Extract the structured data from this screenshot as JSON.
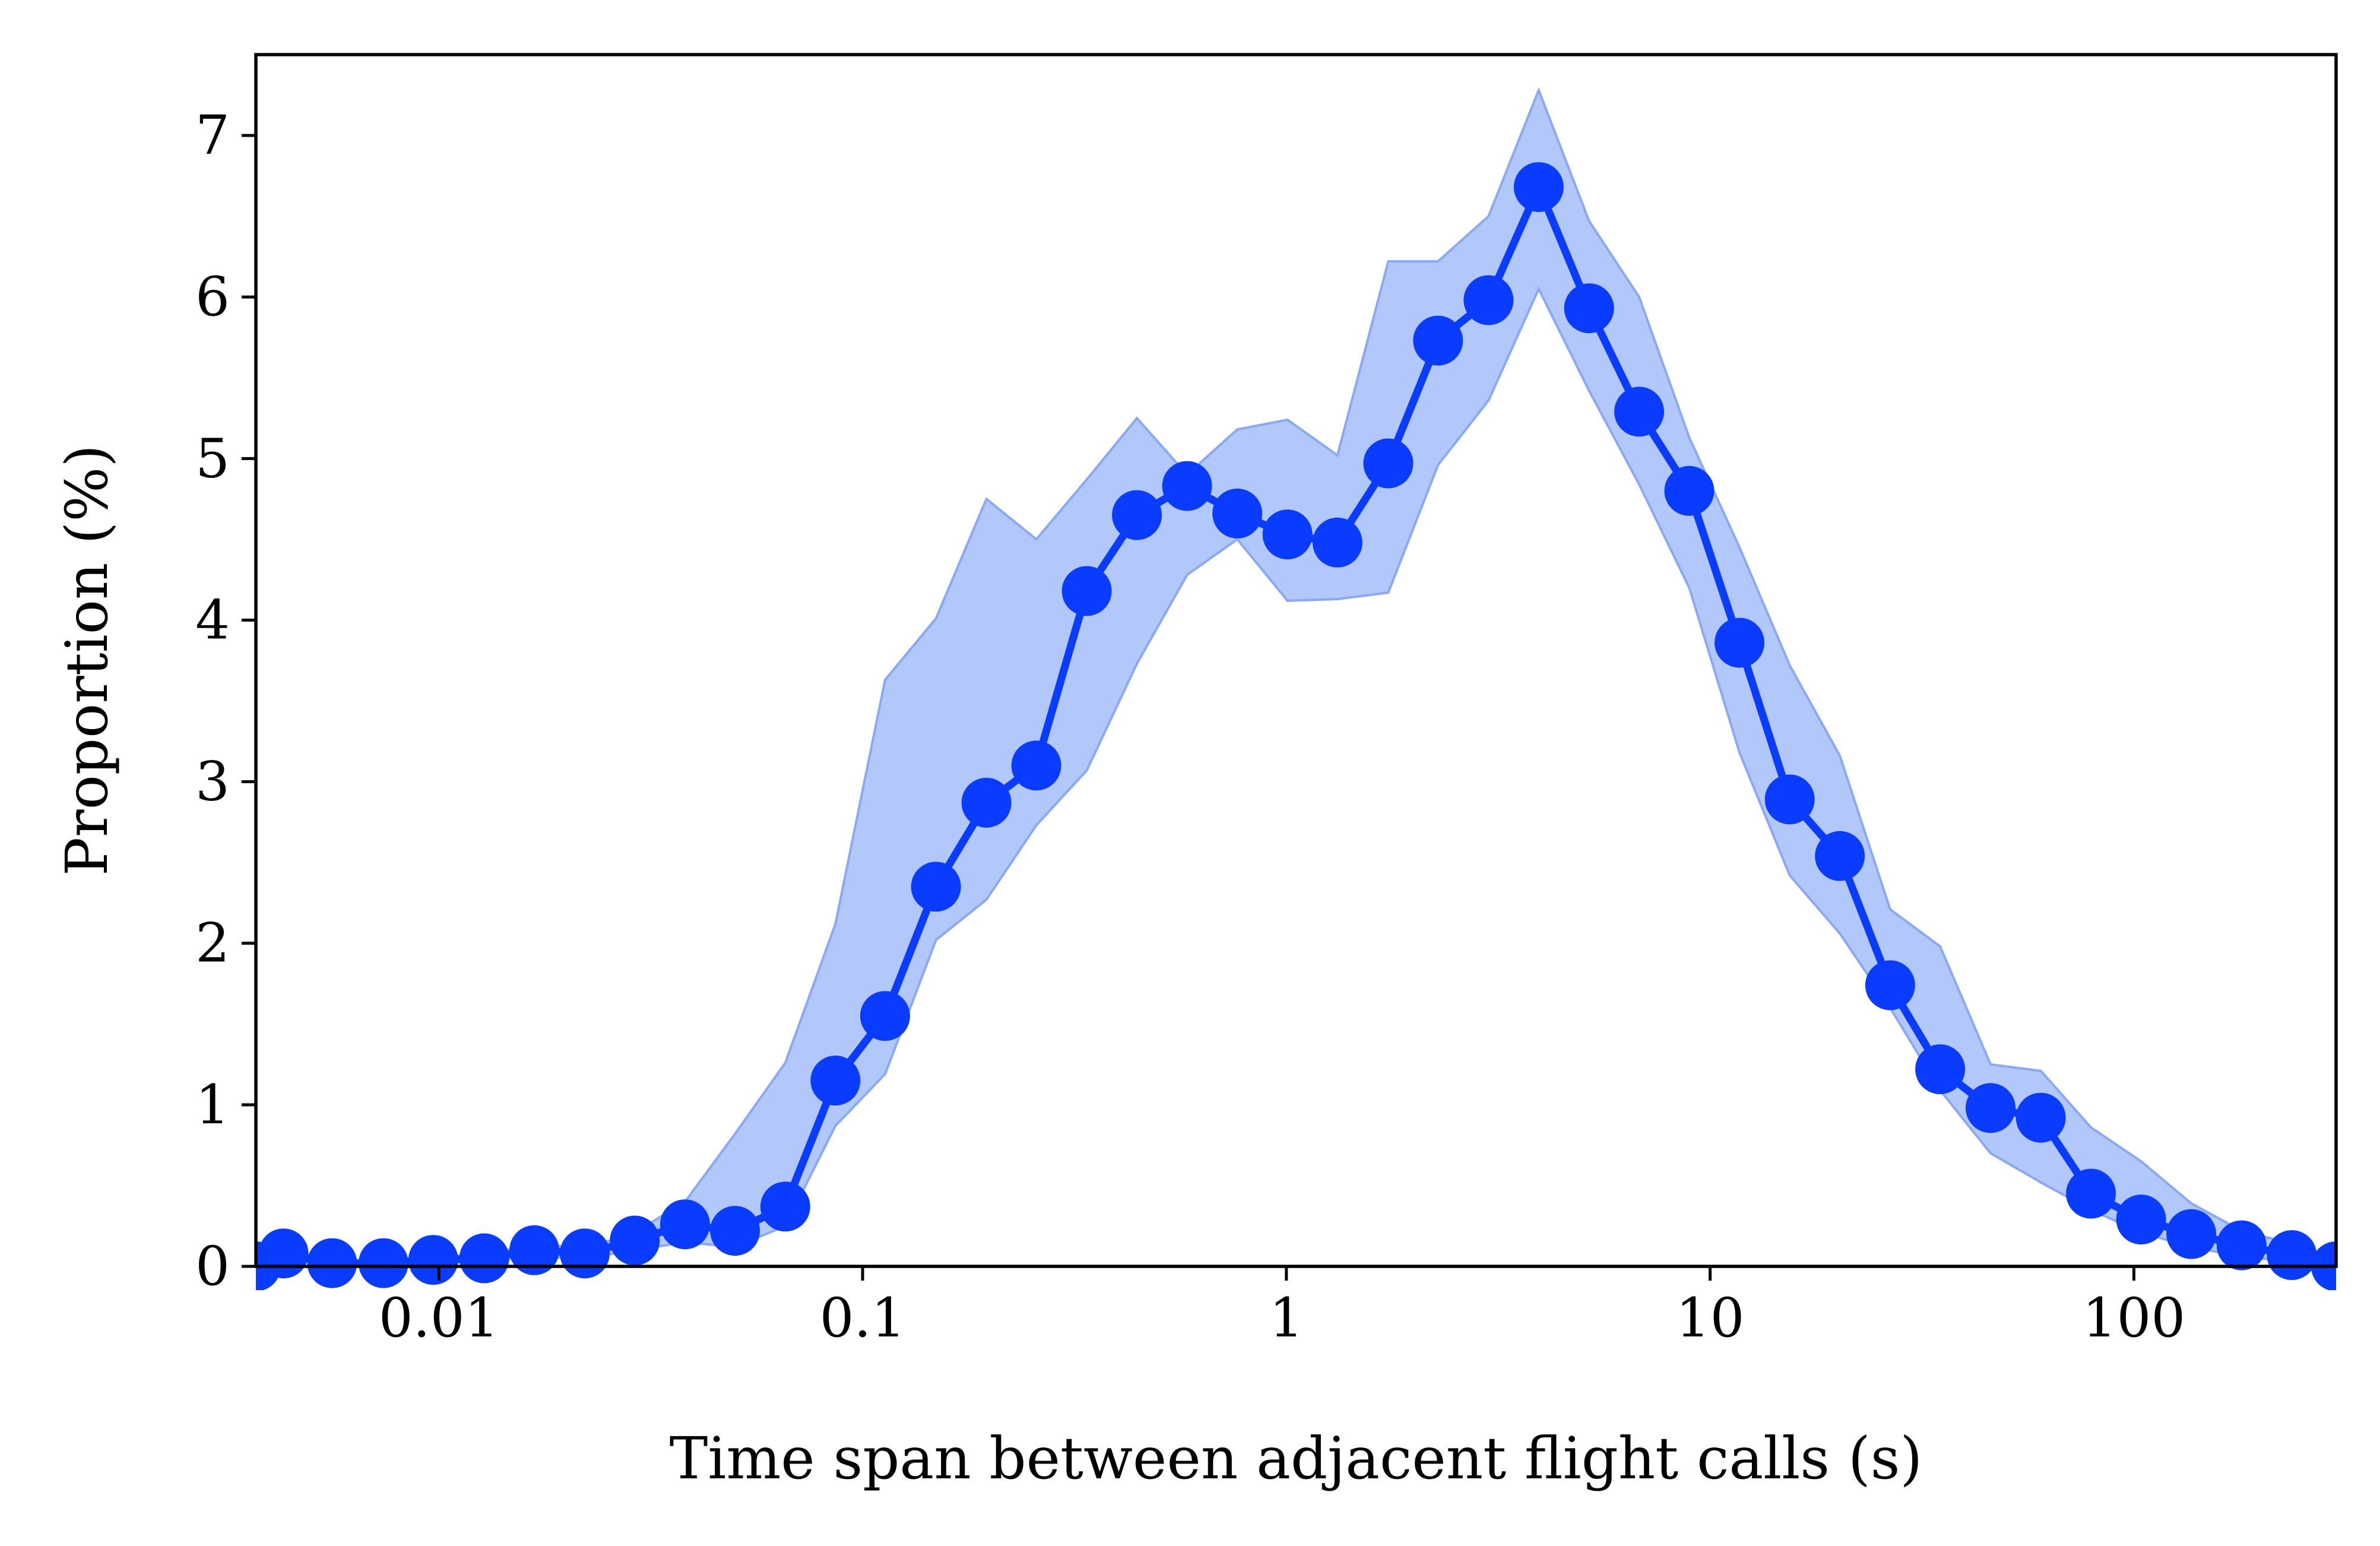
{
  "chart_data": {
    "type": "line",
    "title": "",
    "xlabel": "Time span between adjacent flight calls (s)",
    "ylabel": "Proportion (%)",
    "x_scale": "log",
    "xlim": [
      0.0037,
      300
    ],
    "ylim": [
      0,
      7.5
    ],
    "x_ticks": [
      {
        "value": 0.01,
        "label": "0.01"
      },
      {
        "value": 0.1,
        "label": "0.1"
      },
      {
        "value": 1,
        "label": "1"
      },
      {
        "value": 10,
        "label": "10"
      },
      {
        "value": 100,
        "label": "100"
      }
    ],
    "y_ticks": [
      {
        "value": 0,
        "label": "0"
      },
      {
        "value": 1,
        "label": "1"
      },
      {
        "value": 2,
        "label": "2"
      },
      {
        "value": 3,
        "label": "3"
      },
      {
        "value": 4,
        "label": "4"
      },
      {
        "value": 5,
        "label": "5"
      },
      {
        "value": 6,
        "label": "6"
      },
      {
        "value": 7,
        "label": "7"
      }
    ],
    "grid": false,
    "legend": "none",
    "colors": {
      "line": "#0a3cff",
      "band": "#b3c8fa",
      "band_edge": "#8aa8f5"
    },
    "series": [
      {
        "x": [
          0.0037,
          0.0043,
          0.0056,
          0.0074,
          0.0097,
          0.0128,
          0.0168,
          0.0221,
          0.029,
          0.0381,
          0.05,
          0.0657,
          0.0863,
          0.113,
          0.149,
          0.196,
          0.257,
          0.338,
          0.444,
          0.583,
          0.766,
          1.006,
          1.32,
          1.74,
          2.28,
          3.0,
          3.94,
          5.18,
          6.8,
          8.93,
          11.73,
          15.41,
          20.24,
          26.6,
          34.9,
          45.9,
          60.3,
          79.2,
          104,
          136.6,
          179.5,
          235.8,
          300
        ],
        "y": [
          0.0,
          0.08,
          0.02,
          0.02,
          0.04,
          0.05,
          0.1,
          0.08,
          0.16,
          0.26,
          0.22,
          0.37,
          1.15,
          1.55,
          2.35,
          2.87,
          3.1,
          4.18,
          4.65,
          4.83,
          4.66,
          4.53,
          4.48,
          4.97,
          5.73,
          5.98,
          6.68,
          5.93,
          5.29,
          4.8,
          3.86,
          2.89,
          2.54,
          1.74,
          1.22,
          0.98,
          0.92,
          0.45,
          0.29,
          0.2,
          0.13,
          0.07,
          0.0
        ],
        "lower": [
          0.0,
          0.05,
          0.01,
          0.01,
          0.02,
          0.03,
          0.06,
          0.05,
          0.1,
          0.15,
          0.12,
          0.25,
          0.87,
          1.19,
          2.02,
          2.27,
          2.73,
          3.07,
          3.73,
          4.28,
          4.5,
          4.12,
          4.13,
          4.17,
          4.96,
          5.36,
          6.05,
          5.42,
          4.84,
          4.2,
          3.18,
          2.42,
          2.06,
          1.6,
          1.09,
          0.7,
          0.52,
          0.35,
          0.21,
          0.12,
          0.06,
          0.03,
          0.0
        ],
        "upper": [
          0.0,
          0.11,
          0.03,
          0.03,
          0.06,
          0.07,
          0.14,
          0.11,
          0.21,
          0.4,
          0.82,
          1.26,
          2.12,
          3.63,
          4.01,
          4.75,
          4.5,
          4.87,
          5.25,
          4.9,
          5.18,
          5.24,
          5.02,
          6.22,
          6.22,
          6.5,
          7.28,
          6.47,
          6.0,
          5.13,
          4.45,
          3.72,
          3.16,
          2.21,
          1.98,
          1.25,
          1.21,
          0.86,
          0.65,
          0.39,
          0.22,
          0.14,
          0.0
        ]
      }
    ]
  }
}
